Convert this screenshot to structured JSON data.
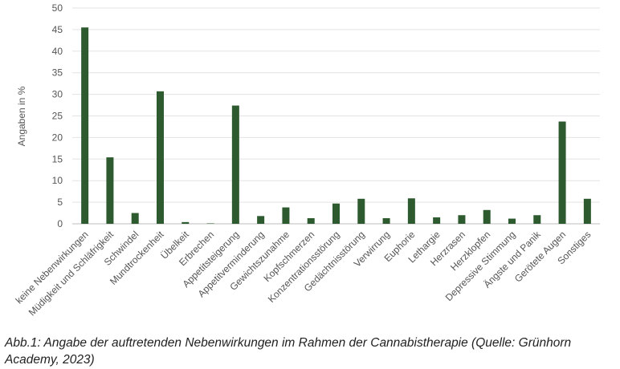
{
  "chart_data": {
    "type": "bar",
    "title": "",
    "xlabel": "",
    "ylabel": "Angaben in %",
    "ylim": [
      0,
      50
    ],
    "yticks": [
      0,
      5,
      10,
      15,
      20,
      25,
      30,
      35,
      40,
      45,
      50
    ],
    "grid": true,
    "legend": "none",
    "bar_color": "#2d5a2e",
    "categories": [
      "keine Nebenwirkungen",
      "Müdigkeit und Schläfrigkeit",
      "Schwindel",
      "Mundtrockenheit",
      "Übelkeit",
      "Erbrechen",
      "Appetitsteigerung",
      "Appetitverminderung",
      "Gewichtszunahme",
      "Kopfschmerzen",
      "Konzentrationsstörung",
      "Gedächtnisstörung",
      "Verwirrung",
      "Euphorie",
      "Lethargie",
      "Herzrasen",
      "Herzklopfen",
      "Depressive Stimmung",
      "Ängste und Panik",
      "Gerötete Augen",
      "Sonstiges"
    ],
    "values": [
      45.5,
      15.4,
      2.5,
      30.7,
      0.4,
      0.1,
      27.4,
      1.8,
      3.8,
      1.3,
      4.7,
      5.8,
      1.3,
      5.9,
      1.5,
      2.0,
      3.2,
      1.2,
      2.0,
      23.7,
      5.8
    ]
  },
  "caption": "Abb.1: Angabe der auftretenden Nebenwirkungen im Rahmen der Cannabistherapie (Quelle: Grünhorn Academy, 2023)"
}
